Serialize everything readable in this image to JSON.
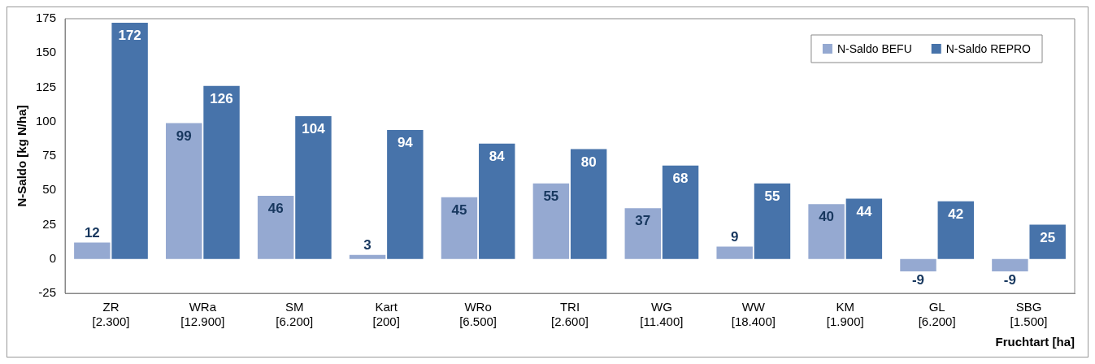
{
  "chart_data": {
    "type": "bar",
    "xlabel": "Fruchtart [ha]",
    "ylabel": "N-Saldo [kg N/ha]",
    "categories": [
      "ZR\n[2.300]",
      "WRa\n[12.900]",
      "SM\n[6.200]",
      "Kart\n[200]",
      "WRo\n[6.500]",
      "TRI\n[2.600]",
      "WG\n[11.400]",
      "WW\n[18.400]",
      "KM\n[1.900]",
      "GL\n[6.200]",
      "SBG\n[1.500]"
    ],
    "series": [
      {
        "name": "N-Saldo BEFU",
        "color": "#95a9d1",
        "values": [
          12,
          99,
          46,
          3,
          45,
          55,
          37,
          9,
          40,
          -9,
          -9
        ]
      },
      {
        "name": "N-Saldo REPRO",
        "color": "#4773aa",
        "values": [
          172,
          126,
          104,
          94,
          84,
          80,
          68,
          55,
          44,
          42,
          25
        ]
      }
    ],
    "ylim": [
      -25,
      175
    ],
    "yticks": [
      -25,
      0,
      25,
      50,
      75,
      100,
      125,
      150,
      175
    ],
    "data_labels": true,
    "legend": "top right",
    "grid": false
  }
}
